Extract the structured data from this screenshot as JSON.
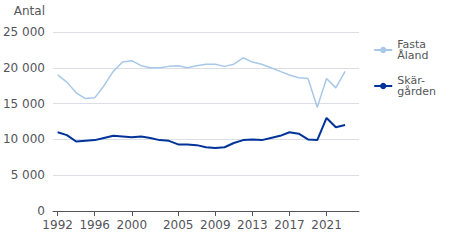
{
  "chart_data": {
    "type": "line",
    "ylabel": "Antal",
    "x": [
      1992,
      1993,
      1994,
      1995,
      1996,
      1997,
      1998,
      1999,
      2000,
      2001,
      2002,
      2003,
      2004,
      2005,
      2006,
      2007,
      2008,
      2009,
      2010,
      2011,
      2012,
      2013,
      2014,
      2015,
      2016,
      2017,
      2018,
      2019,
      2020,
      2021,
      2022,
      2023
    ],
    "series": [
      {
        "name": "Fasta\nÅland",
        "color": "#a8c8e8",
        "values": [
          19000,
          18000,
          16500,
          15700,
          15800,
          17500,
          19500,
          20800,
          21000,
          20300,
          20000,
          20000,
          20200,
          20300,
          20000,
          20300,
          20500,
          20500,
          20200,
          20500,
          21400,
          20800,
          20500,
          20000,
          19500,
          19000,
          18600,
          18500,
          14500,
          18500,
          17200,
          19500
        ]
      },
      {
        "name": "Skär-\ngården",
        "color": "#003399",
        "values": [
          11000,
          10600,
          9700,
          9800,
          9900,
          10200,
          10500,
          10400,
          10300,
          10400,
          10200,
          9900,
          9800,
          9300,
          9300,
          9200,
          8900,
          8800,
          8900,
          9500,
          9900,
          10000,
          9900,
          10200,
          10500,
          11000,
          10800,
          10000,
          9900,
          13000,
          11700,
          12000
        ]
      }
    ],
    "xlim": [
      1991.5,
      2024.5
    ],
    "xticks": [
      1992,
      1996,
      2000,
      2005,
      2009,
      2013,
      2017,
      2021
    ],
    "ylim": [
      0,
      25000
    ],
    "yticks": [
      0,
      {
        "value": 5000,
        "label": "5 000"
      },
      {
        "value": 10000,
        "label": "10 000"
      },
      {
        "value": 15000,
        "label": "15 000"
      },
      {
        "value": 20000,
        "label": "20 000"
      },
      {
        "value": 25000,
        "label": "25 000"
      }
    ],
    "grid": true,
    "legend": "right"
  }
}
